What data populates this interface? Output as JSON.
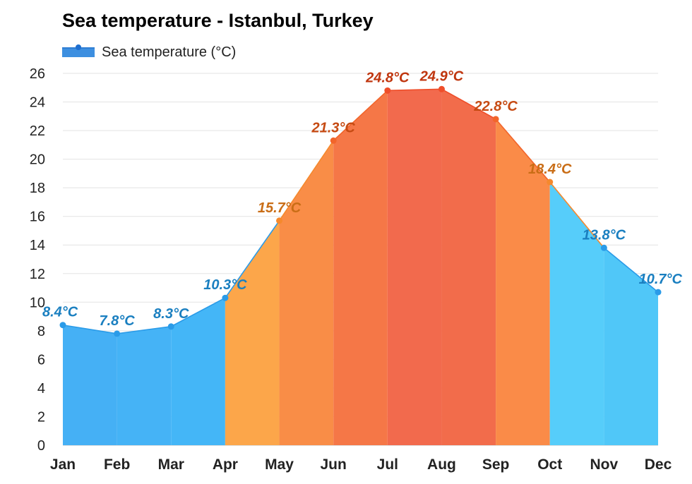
{
  "chart_data": {
    "type": "area",
    "title": "Sea temperature - Istanbul, Turkey",
    "legend": {
      "label": "Sea temperature (°C)",
      "placement": "top-left",
      "color": "#3d8fe0"
    },
    "categories": [
      "Jan",
      "Feb",
      "Mar",
      "Apr",
      "May",
      "Jun",
      "Jul",
      "Aug",
      "Sep",
      "Oct",
      "Nov",
      "Dec"
    ],
    "series": [
      {
        "name": "Sea temperature (°C)",
        "values": [
          8.4,
          7.8,
          8.3,
          10.3,
          15.7,
          21.3,
          24.8,
          24.9,
          22.8,
          18.4,
          13.8,
          10.7
        ],
        "labels": [
          "8.4°C",
          "7.8°C",
          "8.3°C",
          "10.3°C",
          "15.7°C",
          "21.3°C",
          "24.8°C",
          "24.9°C",
          "22.8°C",
          "18.4°C",
          "13.8°C",
          "10.7°C"
        ]
      }
    ],
    "segment_colors": [
      "#45b0f5",
      "#45b3f6",
      "#44b6f7",
      "#fca64a",
      "#f98d47",
      "#f57747",
      "#f26a4d",
      "#f26c4b",
      "#fa8b48",
      "#56cdfa",
      "#50c7f8",
      "#4ac3f7"
    ],
    "label_colors": [
      "#1a7fc0",
      "#1a7fc0",
      "#1a7fc0",
      "#1a7fc0",
      "#c96d16",
      "#c64a12",
      "#c0360f",
      "#c0360f",
      "#c64a12",
      "#c96d16",
      "#1a7fc0",
      "#1a7fc0"
    ],
    "point_colors": [
      "#2a9be8",
      "#2a9be8",
      "#2a9be8",
      "#2a9be8",
      "#f5892d",
      "#f2652b",
      "#ef4e2a",
      "#ef4e2a",
      "#f2652b",
      "#f5892d",
      "#2a9be8",
      "#2a9be8"
    ],
    "ylim": [
      0,
      26
    ],
    "yticks": [
      0,
      2,
      4,
      6,
      8,
      10,
      12,
      14,
      16,
      18,
      20,
      22,
      24,
      26
    ],
    "grid": true,
    "xlabel": "",
    "ylabel": ""
  }
}
